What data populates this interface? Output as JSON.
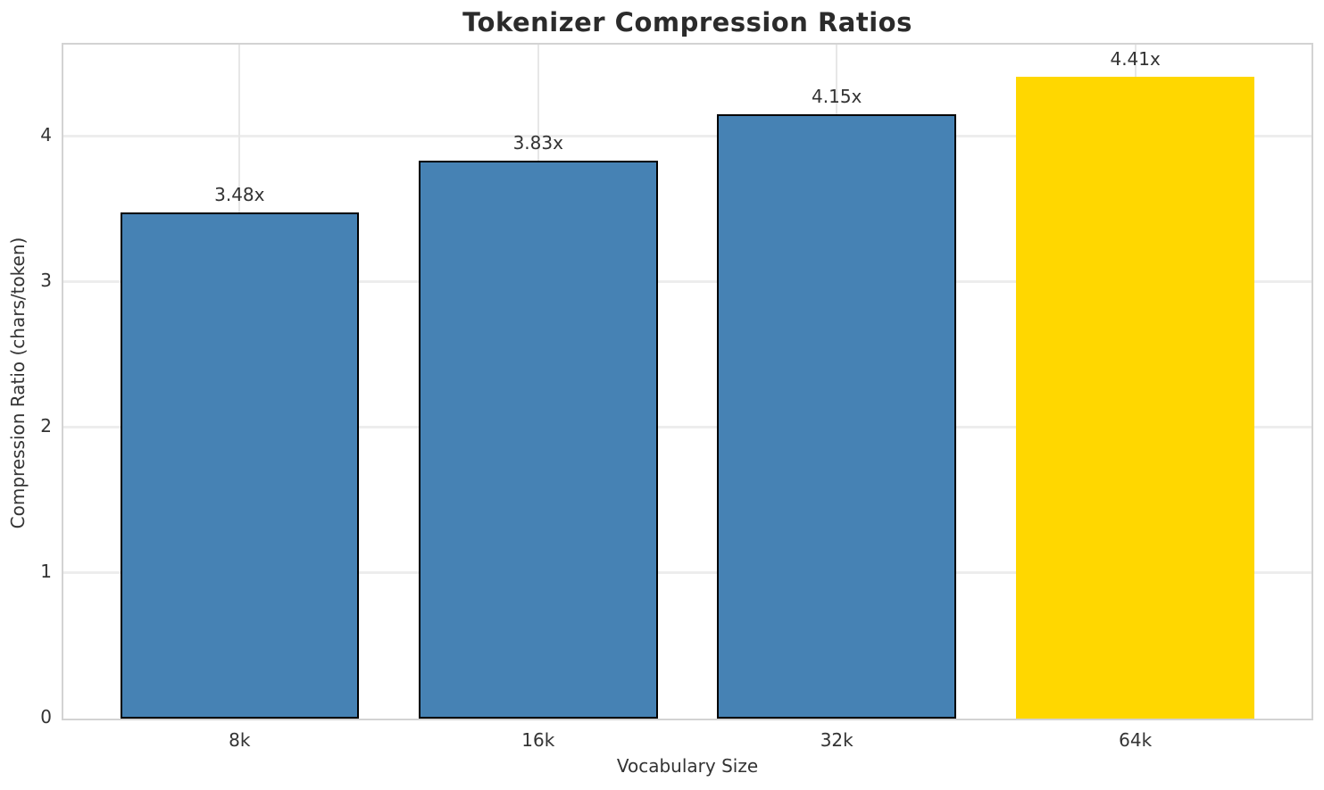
{
  "chart_data": {
    "type": "bar",
    "title": "Tokenizer Compression Ratios",
    "xlabel": "Vocabulary Size",
    "ylabel": "Compression Ratio (chars/token)",
    "categories": [
      "8k",
      "16k",
      "32k",
      "64k"
    ],
    "values": [
      3.48,
      3.83,
      4.15,
      4.41
    ],
    "bar_labels": [
      "3.48x",
      "3.83x",
      "4.15x",
      "4.41x"
    ],
    "yticks": [
      0,
      1,
      2,
      3,
      4
    ],
    "ylim": [
      0,
      4.63
    ],
    "grid": true,
    "legend_position": "none",
    "bar_colors": [
      "#4682B4",
      "#4682B4",
      "#4682B4",
      "#FFD700"
    ],
    "bar_edge_widths": [
      2,
      2,
      2,
      0
    ],
    "colors": {
      "bar": "#4682B4",
      "highlight_bar": "#FFD700",
      "bar_edge": "#000000",
      "grid": "#ededed",
      "spine": "#d3d3d3",
      "text": "#333333",
      "title": "#2b2b2b",
      "background": "#ffffff"
    }
  }
}
